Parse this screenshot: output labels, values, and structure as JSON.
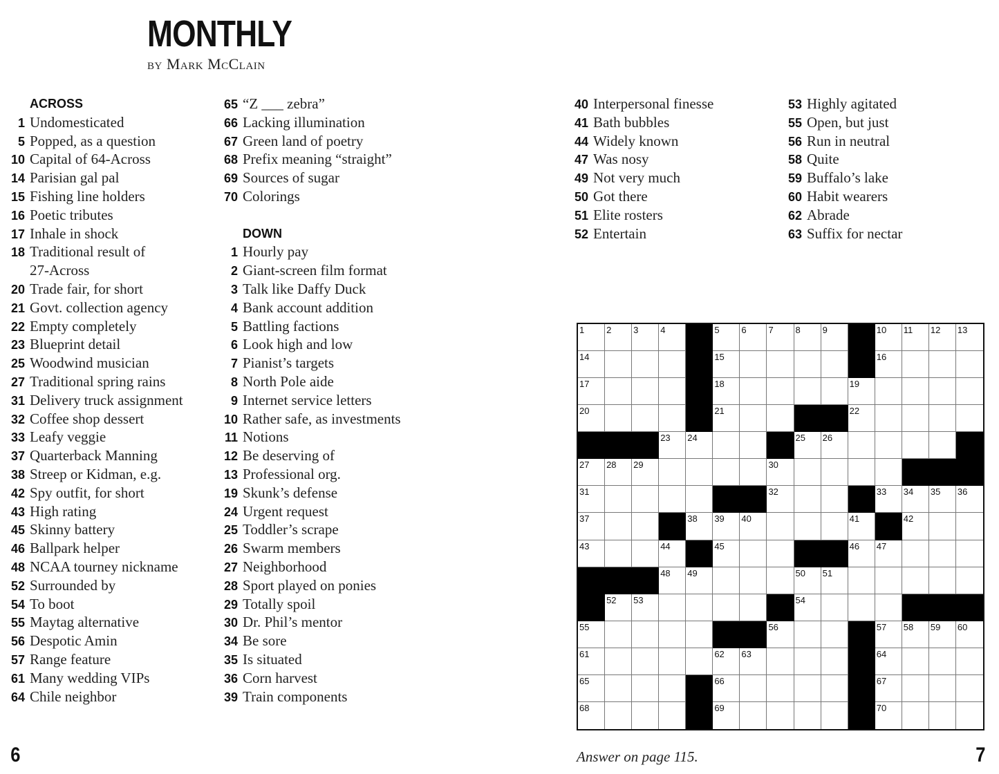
{
  "header": {
    "title": "MONTHLY",
    "byline": "by Mark McClain"
  },
  "across_heading": "ACROSS",
  "down_heading": "DOWN",
  "across": [
    {
      "n": "1",
      "t": "Undomesticated"
    },
    {
      "n": "5",
      "t": "Popped, as a question"
    },
    {
      "n": "10",
      "t": "Capital of 64-Across"
    },
    {
      "n": "14",
      "t": "Parisian gal pal"
    },
    {
      "n": "15",
      "t": "Fishing line holders"
    },
    {
      "n": "16",
      "t": "Poetic tributes"
    },
    {
      "n": "17",
      "t": "Inhale in shock"
    },
    {
      "n": "18",
      "t": "Traditional result of",
      "t2": "27-Across"
    },
    {
      "n": "20",
      "t": "Trade fair, for short"
    },
    {
      "n": "21",
      "t": "Govt. collection agency"
    },
    {
      "n": "22",
      "t": "Empty completely"
    },
    {
      "n": "23",
      "t": "Blueprint detail"
    },
    {
      "n": "25",
      "t": "Woodwind musician"
    },
    {
      "n": "27",
      "t": "Traditional spring rains"
    },
    {
      "n": "31",
      "t": "Delivery truck assignment"
    },
    {
      "n": "32",
      "t": "Coffee shop dessert"
    },
    {
      "n": "33",
      "t": "Leafy veggie"
    },
    {
      "n": "37",
      "t": "Quarterback Manning"
    },
    {
      "n": "38",
      "t": "Streep or Kidman, e.g."
    },
    {
      "n": "42",
      "t": "Spy outfit, for short"
    },
    {
      "n": "43",
      "t": "High rating"
    },
    {
      "n": "45",
      "t": "Skinny battery"
    },
    {
      "n": "46",
      "t": "Ballpark helper"
    },
    {
      "n": "48",
      "t": "NCAA tourney nickname"
    },
    {
      "n": "52",
      "t": "Surrounded by"
    },
    {
      "n": "54",
      "t": "To boot"
    },
    {
      "n": "55",
      "t": "Maytag alternative"
    },
    {
      "n": "56",
      "t": "Despotic Amin"
    },
    {
      "n": "57",
      "t": "Range feature"
    },
    {
      "n": "61",
      "t": "Many wedding VIPs"
    },
    {
      "n": "64",
      "t": "Chile neighbor"
    },
    {
      "n": "65",
      "t": "“Z ___ zebra”"
    },
    {
      "n": "66",
      "t": "Lacking illumination"
    },
    {
      "n": "67",
      "t": "Green land of poetry"
    },
    {
      "n": "68",
      "t": "Prefix meaning “straight”"
    },
    {
      "n": "69",
      "t": "Sources of sugar"
    },
    {
      "n": "70",
      "t": "Colorings"
    }
  ],
  "down": [
    {
      "n": "1",
      "t": "Hourly pay"
    },
    {
      "n": "2",
      "t": "Giant-screen film format"
    },
    {
      "n": "3",
      "t": "Talk like Daffy Duck"
    },
    {
      "n": "4",
      "t": "Bank account addition"
    },
    {
      "n": "5",
      "t": "Battling factions"
    },
    {
      "n": "6",
      "t": "Look high and low"
    },
    {
      "n": "7",
      "t": "Pianist’s targets"
    },
    {
      "n": "8",
      "t": "North Pole aide"
    },
    {
      "n": "9",
      "t": "Internet service letters"
    },
    {
      "n": "10",
      "t": "Rather safe, as investments"
    },
    {
      "n": "11",
      "t": "Notions"
    },
    {
      "n": "12",
      "t": "Be deserving of"
    },
    {
      "n": "13",
      "t": "Professional org."
    },
    {
      "n": "19",
      "t": "Skunk’s defense"
    },
    {
      "n": "24",
      "t": "Urgent request"
    },
    {
      "n": "25",
      "t": "Toddler’s scrape"
    },
    {
      "n": "26",
      "t": "Swarm members"
    },
    {
      "n": "27",
      "t": "Neighborhood"
    },
    {
      "n": "28",
      "t": "Sport played on ponies"
    },
    {
      "n": "29",
      "t": "Totally spoil"
    },
    {
      "n": "30",
      "t": "Dr. Phil’s mentor"
    },
    {
      "n": "34",
      "t": "Be sore"
    },
    {
      "n": "35",
      "t": "Is situated"
    },
    {
      "n": "36",
      "t": "Corn harvest"
    },
    {
      "n": "39",
      "t": "Train components"
    },
    {
      "n": "40",
      "t": "Interpersonal finesse"
    },
    {
      "n": "41",
      "t": "Bath bubbles"
    },
    {
      "n": "44",
      "t": "Widely known"
    },
    {
      "n": "47",
      "t": "Was nosy"
    },
    {
      "n": "49",
      "t": "Not very much"
    },
    {
      "n": "50",
      "t": "Got there"
    },
    {
      "n": "51",
      "t": "Elite rosters"
    },
    {
      "n": "52",
      "t": "Entertain"
    },
    {
      "n": "53",
      "t": "Highly agitated"
    },
    {
      "n": "55",
      "t": "Open, but just"
    },
    {
      "n": "56",
      "t": "Run in neutral"
    },
    {
      "n": "58",
      "t": "Quite"
    },
    {
      "n": "59",
      "t": "Buffalo’s lake"
    },
    {
      "n": "60",
      "t": "Habit wearers"
    },
    {
      "n": "62",
      "t": "Abrade"
    },
    {
      "n": "63",
      "t": "Suffix for nectar"
    }
  ],
  "grid": [
    [
      1,
      2,
      3,
      4,
      "#",
      5,
      6,
      7,
      8,
      9,
      "#",
      10,
      11,
      12,
      13
    ],
    [
      14,
      0,
      0,
      0,
      "#",
      15,
      0,
      0,
      0,
      0,
      "#",
      16,
      0,
      0,
      0
    ],
    [
      17,
      0,
      0,
      0,
      "#",
      18,
      0,
      0,
      0,
      0,
      19,
      0,
      0,
      0,
      0
    ],
    [
      20,
      0,
      0,
      0,
      "#",
      21,
      0,
      0,
      "#",
      "#",
      22,
      0,
      0,
      0,
      0
    ],
    [
      "#",
      "#",
      "#",
      23,
      24,
      0,
      0,
      "#",
      25,
      26,
      0,
      0,
      0,
      0,
      "#"
    ],
    [
      27,
      28,
      29,
      0,
      0,
      0,
      0,
      30,
      0,
      0,
      0,
      0,
      "#",
      "#",
      "#"
    ],
    [
      31,
      0,
      0,
      0,
      0,
      "#",
      "#",
      32,
      0,
      0,
      "#",
      33,
      34,
      35,
      36
    ],
    [
      37,
      0,
      0,
      "#",
      38,
      39,
      40,
      0,
      0,
      0,
      41,
      "#",
      42,
      0,
      0
    ],
    [
      43,
      0,
      0,
      44,
      "#",
      45,
      0,
      0,
      "#",
      "#",
      46,
      47,
      0,
      0,
      0
    ],
    [
      "#",
      "#",
      "#",
      48,
      49,
      0,
      0,
      0,
      50,
      51,
      0,
      0,
      0,
      0,
      0
    ],
    [
      "#",
      52,
      53,
      0,
      0,
      0,
      0,
      "#",
      54,
      0,
      0,
      0,
      "#",
      "#",
      "#"
    ],
    [
      55,
      0,
      0,
      0,
      0,
      "#",
      "#",
      56,
      0,
      0,
      "#",
      57,
      58,
      59,
      60
    ],
    [
      61,
      0,
      0,
      0,
      0,
      62,
      63,
      0,
      0,
      0,
      "#",
      64,
      0,
      0,
      0
    ],
    [
      65,
      0,
      0,
      0,
      "#",
      66,
      0,
      0,
      0,
      0,
      "#",
      67,
      0,
      0,
      0
    ],
    [
      68,
      0,
      0,
      0,
      "#",
      69,
      0,
      0,
      0,
      0,
      "#",
      70,
      0,
      0,
      0
    ]
  ],
  "footer": {
    "left_page": "6",
    "right_page": "7",
    "answer_note": "Answer on page 115."
  }
}
